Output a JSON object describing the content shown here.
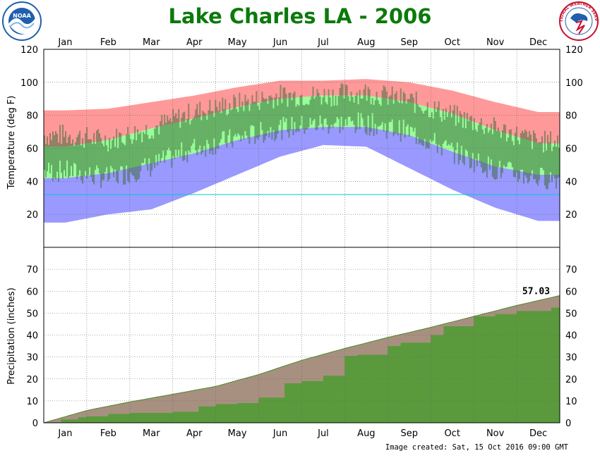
{
  "title": "Lake Charles LA - 2006",
  "footer": "Image created: Sat, 15 Oct 2016 09:00 GMT",
  "logos": {
    "left": {
      "text": "NOAA",
      "color": "#1f5fae"
    },
    "right": {
      "text": "NATIONAL WEATHER SERVICE",
      "color": "#c8102e"
    }
  },
  "colors": {
    "title": "#0b7a0b",
    "record_range": "#ff9999",
    "normal_range": "#99ff99",
    "record_low_band": "#9999ff",
    "normal_band_dark": "#3a6b3a",
    "obs_high_bars": "#6b2b2b",
    "obs_low_bars": "#3a3a6b",
    "precip_observed": "#5a9a3c",
    "precip_normal": "#a89080",
    "freezing_line": "#00cccc"
  },
  "chart_data": [
    {
      "type": "area",
      "panel": "temperature",
      "ylabel": "Temperature (deg F)",
      "ylim": [
        0,
        120
      ],
      "yticks": [
        20,
        40,
        60,
        80,
        100,
        120
      ],
      "grid": true,
      "months": [
        "Jan",
        "Feb",
        "Mar",
        "Apr",
        "May",
        "Jun",
        "Jul",
        "Aug",
        "Sep",
        "Oct",
        "Nov",
        "Dec"
      ],
      "freezing_line": 32,
      "series": [
        {
          "name": "Normal High",
          "x_month": [
            0.5,
            1.5,
            2.5,
            3.5,
            4.5,
            5.5,
            6.5,
            7.5,
            8.5,
            9.5,
            10.5,
            11.5
          ],
          "values": [
            61,
            65,
            72,
            78,
            85,
            90,
            92,
            92,
            88,
            81,
            71,
            63
          ]
        },
        {
          "name": "Normal Low",
          "x_month": [
            0.5,
            1.5,
            2.5,
            3.5,
            4.5,
            5.5,
            6.5,
            7.5,
            8.5,
            9.5,
            10.5,
            11.5
          ],
          "values": [
            42,
            45,
            51,
            57,
            65,
            71,
            73,
            73,
            68,
            58,
            49,
            44
          ]
        },
        {
          "name": "Record High",
          "x_month": [
            0.5,
            1.5,
            2.5,
            3.5,
            4.5,
            5.5,
            6.5,
            7.5,
            8.5,
            9.5,
            10.5,
            11.5
          ],
          "values": [
            83,
            84,
            88,
            92,
            97,
            101,
            101,
            102,
            100,
            95,
            88,
            82
          ]
        },
        {
          "name": "Record Low",
          "x_month": [
            0.5,
            1.5,
            2.5,
            3.5,
            4.5,
            5.5,
            6.5,
            7.5,
            8.5,
            9.5,
            10.5,
            11.5
          ],
          "values": [
            15,
            20,
            23,
            33,
            44,
            55,
            62,
            61,
            48,
            35,
            24,
            16
          ]
        },
        {
          "name": "Observed High",
          "x_month": [
            0.5,
            1.5,
            2.5,
            3.5,
            4.5,
            5.5,
            6.5,
            7.5,
            8.5,
            9.5,
            10.5,
            11.5
          ],
          "values": [
            68,
            65,
            72,
            82,
            87,
            92,
            92,
            94,
            89,
            80,
            72,
            64
          ]
        },
        {
          "name": "Observed Low",
          "x_month": [
            0.5,
            1.5,
            2.5,
            3.5,
            4.5,
            5.5,
            6.5,
            7.5,
            8.5,
            9.5,
            10.5,
            11.5
          ],
          "values": [
            46,
            42,
            49,
            60,
            66,
            72,
            75,
            75,
            70,
            58,
            47,
            42
          ]
        }
      ]
    },
    {
      "type": "area",
      "panel": "precipitation",
      "ylabel": "Precipitation (inches)",
      "ylim": [
        0,
        80
      ],
      "yticks": [
        0,
        10,
        20,
        30,
        40,
        50,
        60,
        70
      ],
      "grid": true,
      "months": [
        "Jan",
        "Feb",
        "Mar",
        "Apr",
        "May",
        "Jun",
        "Jul",
        "Aug",
        "Sep",
        "Oct",
        "Nov",
        "Dec"
      ],
      "annotation": "57.03",
      "series": [
        {
          "name": "Normal Cumulative",
          "x_month": [
            0,
            1,
            2,
            3,
            4,
            5,
            6,
            7,
            8,
            9,
            10,
            11,
            12
          ],
          "values": [
            0,
            5.6,
            9.5,
            13.0,
            16.6,
            22.0,
            28.5,
            33.9,
            38.9,
            43.5,
            48.5,
            53.5,
            58.0
          ]
        },
        {
          "name": "Observed Cumulative",
          "x_month": [
            0,
            0.2,
            0.4,
            0.8,
            1.0,
            1.5,
            2.0,
            3.0,
            3.6,
            4.0,
            4.5,
            5.0,
            5.6,
            6.0,
            6.5,
            7.0,
            7.3,
            8.0,
            8.3,
            9.0,
            9.3,
            10.0,
            10.5,
            11.0,
            11.8,
            12.0
          ],
          "values": [
            0,
            0.2,
            1.5,
            2.5,
            3.0,
            4.0,
            4.5,
            5.0,
            7.5,
            8.5,
            9.0,
            11.5,
            18.0,
            19.0,
            21.5,
            30.5,
            31.0,
            35.0,
            36.5,
            40.0,
            44.0,
            48.5,
            49.5,
            51.0,
            52.5,
            57.03
          ]
        }
      ]
    }
  ]
}
